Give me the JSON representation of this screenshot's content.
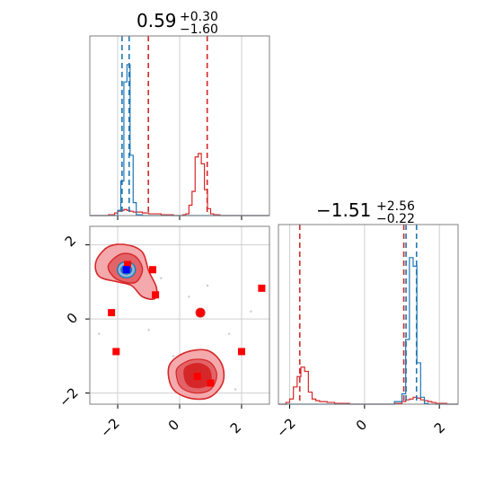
{
  "colors": {
    "blue": "#1f77b4",
    "red": "#d62728",
    "red_fill_light": "#f4a9ac",
    "red_fill_mid": "#e36468",
    "red_fill_dark": "#d62728",
    "marker_red": "#ff0000",
    "marker_blue": "#0000ff",
    "grid": "#cfcfcf",
    "axes": "#7f7f7f"
  },
  "chart_data": {
    "type": "corner",
    "parameters": [
      {
        "title": {
          "median": "0.59",
          "upper": "+0.30",
          "lower": "−1.60"
        },
        "range": [
          -2.9,
          2.9
        ],
        "ticks": [
          -2,
          0,
          2
        ],
        "tick_labels": [
          "−2",
          "0",
          "2"
        ],
        "dashed_lines": {
          "blue": [
            -1.86,
            -1.63
          ],
          "red": [
            -1.01,
            0.89
          ]
        }
      },
      {
        "title": {
          "median": "−1.51",
          "upper": "+2.56",
          "lower": "−0.22"
        },
        "range": [
          -2.3,
          2.5
        ],
        "ticks": [
          -2,
          0,
          2
        ],
        "tick_labels": [
          "−2",
          "0",
          "2"
        ],
        "dashed_lines": {
          "blue": [
            1.11,
            1.39
          ],
          "red": [
            -1.73,
            1.05
          ]
        }
      }
    ],
    "histograms_1d": {
      "param1": {
        "bin_edges": [
          -2.9,
          -2.6,
          -2.3,
          -2.1,
          -2.0,
          -1.9,
          -1.8,
          -1.7,
          -1.6,
          -1.5,
          -1.4,
          -1.2,
          -1.0,
          -0.8,
          -0.6,
          -0.4,
          -0.2,
          0.0,
          0.1,
          0.2,
          0.3,
          0.4,
          0.5,
          0.6,
          0.7,
          0.8,
          0.9,
          1.0,
          1.1,
          1.3,
          1.6,
          2.0,
          2.4,
          2.9
        ],
        "blue_counts": [
          0,
          0,
          0,
          0,
          6,
          40,
          155,
          175,
          70,
          15,
          1,
          0,
          0,
          0,
          0,
          0,
          0,
          0,
          0,
          0,
          0,
          0,
          0,
          0,
          0,
          0,
          0,
          0,
          0,
          0,
          0,
          0,
          0
        ],
        "red_counts": [
          0,
          0,
          1,
          3,
          5,
          6,
          7,
          6,
          5,
          4,
          4,
          3,
          2,
          2,
          1,
          1,
          0,
          0,
          1,
          2,
          12,
          28,
          68,
          72,
          60,
          30,
          8,
          2,
          1,
          0,
          0,
          0,
          0
        ],
        "ymax": 200
      },
      "param2": {
        "bin_edges": [
          -2.3,
          -2.1,
          -2.0,
          -1.9,
          -1.8,
          -1.7,
          -1.6,
          -1.5,
          -1.4,
          -1.3,
          -1.2,
          -1.0,
          -0.8,
          -0.6,
          -0.4,
          0.0,
          0.5,
          0.8,
          1.0,
          1.1,
          1.2,
          1.3,
          1.4,
          1.5,
          1.6,
          1.7,
          1.8,
          1.9,
          2.0,
          2.2,
          2.5
        ],
        "blue_counts": [
          0,
          0,
          0,
          0,
          0,
          0,
          0,
          0,
          0,
          0,
          0,
          0,
          0,
          0,
          0,
          0,
          0,
          3,
          12,
          75,
          170,
          160,
          48,
          8,
          1,
          0,
          0,
          0,
          0,
          0
        ],
        "red_counts": [
          0,
          2,
          6,
          20,
          32,
          43,
          38,
          14,
          6,
          4,
          3,
          2,
          1,
          1,
          0,
          0,
          0,
          1,
          3,
          5,
          6,
          8,
          7,
          5,
          4,
          3,
          2,
          1,
          1,
          0
        ],
        "ymax": 200
      }
    },
    "contours_2d": {
      "blue_center": [
        -1.72,
        1.33
      ],
      "red_mode_upper": {
        "center": [
          -1.6,
          1.33
        ],
        "levels": [
          "outer",
          "inner"
        ]
      },
      "red_mode_lower": {
        "center": [
          0.62,
          -1.55
        ],
        "levels": [
          "outer",
          "mid",
          "inner"
        ]
      },
      "red_small_blob": [
        0.67,
        0.17
      ]
    },
    "markers_red": [
      [
        -1.68,
        1.47
      ],
      [
        -0.87,
        1.33
      ],
      [
        -0.78,
        0.65
      ],
      [
        -2.2,
        0.17
      ],
      [
        0.67,
        0.17
      ],
      [
        -2.05,
        -0.88
      ],
      [
        2.0,
        -0.88
      ],
      [
        2.65,
        0.83
      ],
      [
        0.57,
        -1.55
      ],
      [
        1.0,
        -1.73
      ]
    ],
    "marker_blue": [
      -1.72,
      1.33
    ],
    "scatter_points": [
      [
        -2.4,
        1.9
      ],
      [
        -0.6,
        1.1
      ],
      [
        0.3,
        0.6
      ],
      [
        1.6,
        -0.4
      ],
      [
        -0.2,
        -1.0
      ],
      [
        2.3,
        0.2
      ],
      [
        -2.6,
        -0.4
      ],
      [
        0.9,
        0.9
      ],
      [
        1.8,
        -1.9
      ],
      [
        -1.0,
        -0.3
      ]
    ]
  }
}
